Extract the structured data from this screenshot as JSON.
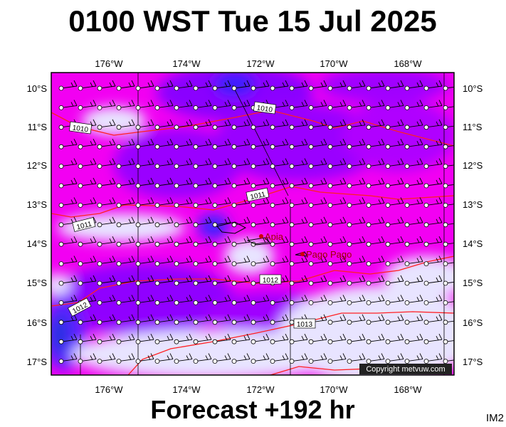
{
  "title": "0100 WST Tue 15 Jul 2025",
  "footer": "Forecast +192 hr",
  "corner_label": "IM2",
  "copyright": "Copyright metvuw.com",
  "longitude_labels": [
    "176°W",
    "174°W",
    "172°W",
    "170°W",
    "168°W"
  ],
  "latitude_labels": [
    "10°S",
    "11°S",
    "12°S",
    "13°S",
    "14°S",
    "15°S",
    "16°S",
    "17°S"
  ],
  "isobar_labels": [
    "1010",
    "1010",
    "1011",
    "1011",
    "1012",
    "1012",
    "1013"
  ],
  "places": [
    "Apia",
    "Pago Pago"
  ]
}
